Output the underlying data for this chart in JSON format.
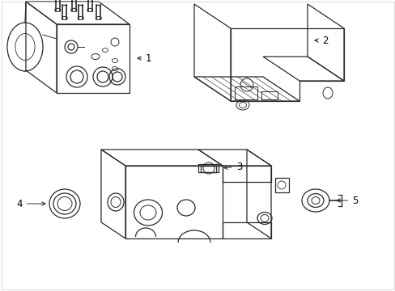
{
  "background_color": "#ffffff",
  "line_color": "#2a2a2a",
  "line_width": 0.9,
  "label_color": "#000000",
  "label_fontsize": 8.5,
  "figsize": [
    4.89,
    3.6
  ],
  "dpi": 100,
  "border_color": "#cccccc",
  "border_lw": 0.5
}
